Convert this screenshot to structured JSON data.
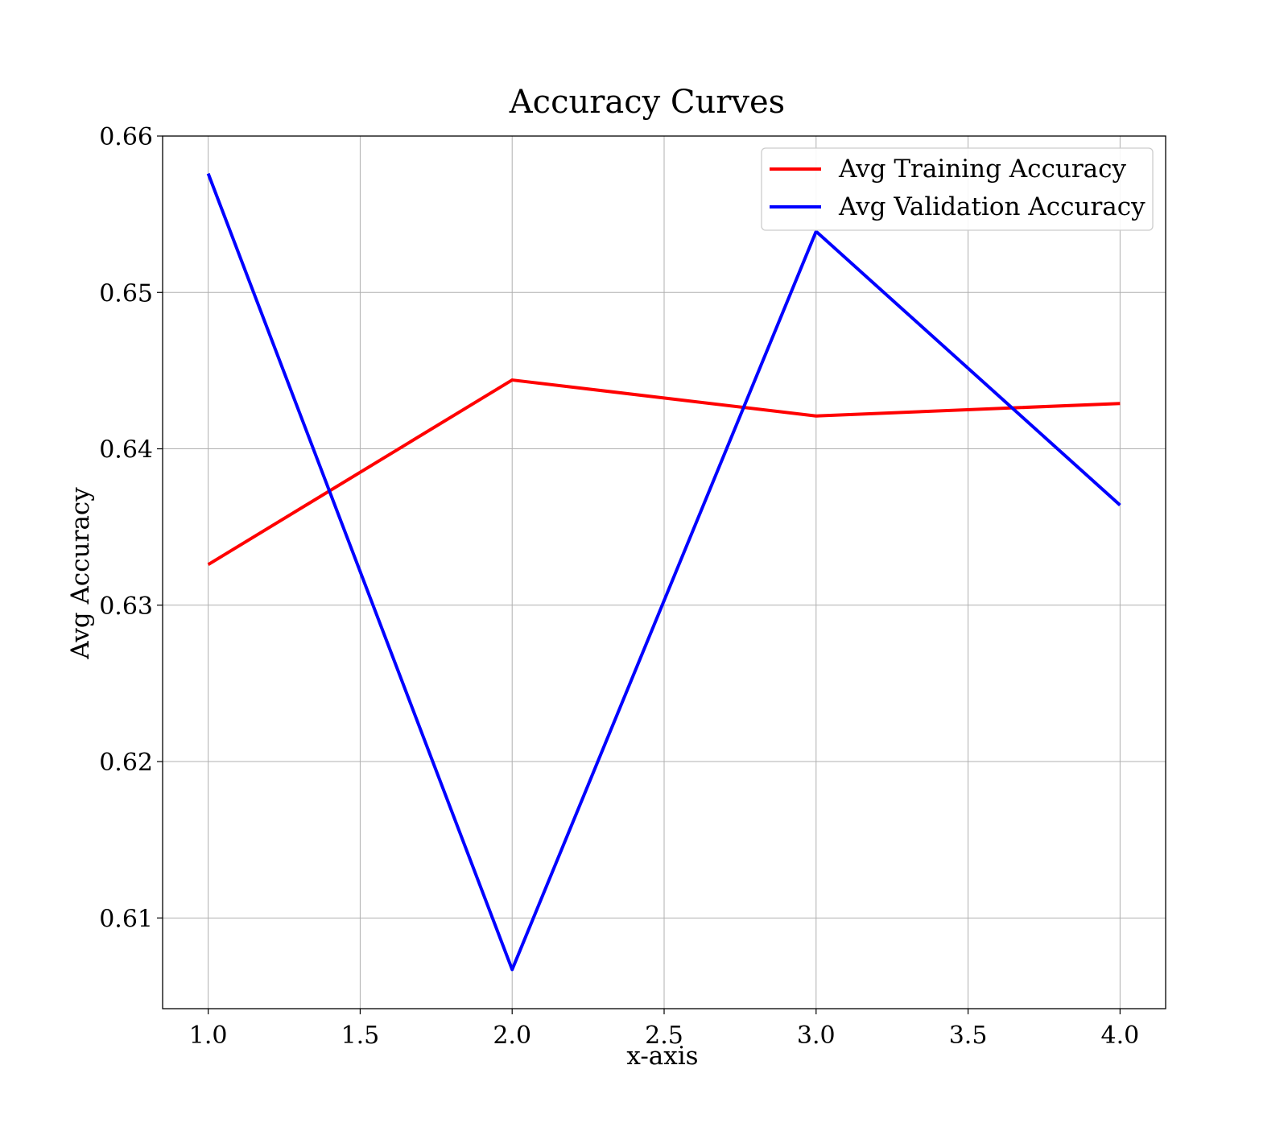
{
  "chart_data": {
    "type": "line",
    "title": "Accuracy Curves",
    "xlabel": "x-axis",
    "ylabel": "Avg Accuracy",
    "x": [
      1.0,
      2.0,
      3.0,
      4.0
    ],
    "series": [
      {
        "name": "Avg Training Accuracy",
        "color": "#ff0000",
        "values": [
          0.6326,
          0.6444,
          0.6421,
          0.6429
        ]
      },
      {
        "name": "Avg Validation Accuracy",
        "color": "#0000ff",
        "values": [
          0.6576,
          0.6067,
          0.6539,
          0.6364
        ]
      }
    ],
    "xlim": [
      0.85,
      4.15
    ],
    "ylim": [
      0.6042,
      0.66
    ],
    "xticks": [
      1.0,
      1.5,
      2.0,
      2.5,
      3.0,
      3.5,
      4.0
    ],
    "xtick_labels": [
      "1.0",
      "1.5",
      "2.0",
      "2.5",
      "3.0",
      "3.5",
      "4.0"
    ],
    "yticks": [
      0.61,
      0.62,
      0.63,
      0.64,
      0.65,
      0.66
    ],
    "ytick_labels": [
      "0.61",
      "0.62",
      "0.63",
      "0.64",
      "0.65",
      "0.66"
    ],
    "grid": true,
    "legend_position": "top-right"
  }
}
